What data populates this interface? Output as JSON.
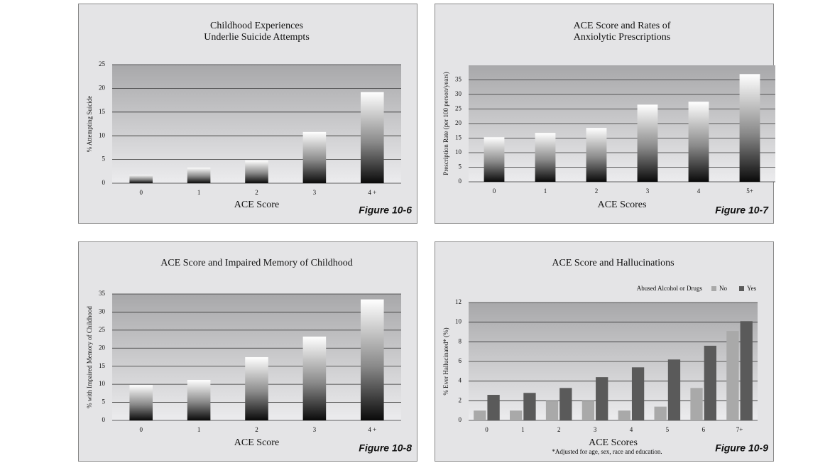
{
  "chart_data": [
    {
      "type": "bar",
      "title": [
        "Childhood Experiences",
        "Underlie Suicide Attempts"
      ],
      "x_label": "ACE Score",
      "y_label": "% Attempting Suicide",
      "figure_label": "Figure 10-6",
      "categories": [
        "0",
        "1",
        "2",
        "3",
        "4 +"
      ],
      "values": [
        1.8,
        3.3,
        4.8,
        10.8,
        19.2
      ],
      "ylim": [
        0,
        25
      ],
      "yticks": [
        0,
        5,
        10,
        15,
        20,
        25
      ],
      "grid": true
    },
    {
      "type": "bar",
      "title": [
        "ACE Score and Rates of",
        "Anxiolytic Prescriptions"
      ],
      "x_label": "ACE Scores",
      "y_label": "Prescription Rate (per 100 person/years)",
      "figure_label": "Figure 10-7",
      "categories": [
        "0",
        "1",
        "2",
        "3",
        "4",
        "5+"
      ],
      "values": [
        15.3,
        16.8,
        18.5,
        26.5,
        27.5,
        37
      ],
      "ylim": [
        0,
        40
      ],
      "yticks": [
        0,
        5,
        10,
        15,
        20,
        25,
        30,
        35
      ],
      "grid": true
    },
    {
      "type": "bar",
      "title": [
        "ACE Score and Impaired Memory of Childhood"
      ],
      "x_label": "ACE Score",
      "y_label": "% with Impaired Memory of Childhood",
      "figure_label": "Figure 10-8",
      "categories": [
        "0",
        "1",
        "2",
        "3",
        "4 +"
      ],
      "values": [
        9.8,
        11.2,
        17.5,
        23.2,
        33.5
      ],
      "ylim": [
        0,
        35
      ],
      "yticks": [
        0,
        5,
        10,
        15,
        20,
        25,
        30,
        35
      ],
      "grid": true
    },
    {
      "type": "bar",
      "title": [
        "ACE Score and Hallucinations"
      ],
      "x_label": "ACE Scores",
      "y_label": "% Ever Hallucinated* (%)",
      "figure_label": "Figure 10-9",
      "footnote": "*Adjusted for age, sex, race and education.",
      "legend_title": "Abused Alcohol or Drugs",
      "categories": [
        "0",
        "1",
        "2",
        "3",
        "4",
        "5",
        "6",
        "7+"
      ],
      "series": [
        {
          "name": "No",
          "color": "#a9a9a9",
          "values": [
            1,
            1,
            2,
            2,
            1,
            1.4,
            3.3,
            9.1
          ]
        },
        {
          "name": "Yes",
          "color": "#5a5a5a",
          "values": [
            2.6,
            2.8,
            3.3,
            4.4,
            5.4,
            6.2,
            7.6,
            10.1
          ]
        }
      ],
      "ylim": [
        0,
        12
      ],
      "yticks": [
        0,
        2,
        4,
        6,
        8,
        10,
        12
      ],
      "grid": true
    }
  ]
}
